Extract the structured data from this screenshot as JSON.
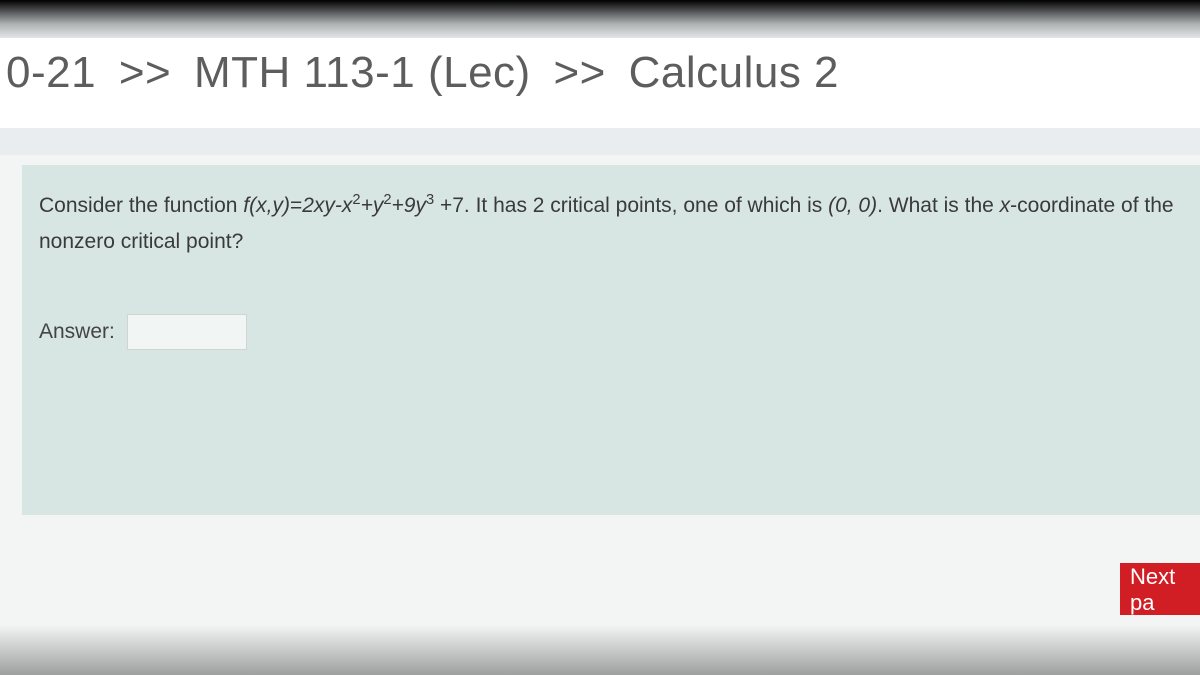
{
  "breadcrumb": {
    "part1": "0-21",
    "sep": ">>",
    "part2": "MTH 113-1 (Lec)",
    "part3": "Calculus 2"
  },
  "question": {
    "intro": "Consider the function ",
    "fn_name": "f(x,y)",
    "equals": "=",
    "expr_a": "2xy-x",
    "sup2a": "2",
    "expr_b": "+y",
    "sup2b": "2",
    "expr_c": "+9y",
    "sup3": "3",
    "tail1": " +7. It has 2 critical points, one of which is  ",
    "point": "(0, 0)",
    "tail2": ". What is the ",
    "xcoord_label": "x",
    "tail3": "-coordinate of the nonzero critical point?"
  },
  "answer": {
    "label": "Answer:",
    "value": ""
  },
  "nav": {
    "next_label": "Next pa"
  },
  "colors": {
    "panel_bg": "#d8e6e3",
    "page_bg": "#f3f4f4",
    "breadcrumb_bg": "#ffffff",
    "text": "#3a3a3a",
    "button_bg": "#d11e25",
    "button_text": "#ffffff"
  }
}
